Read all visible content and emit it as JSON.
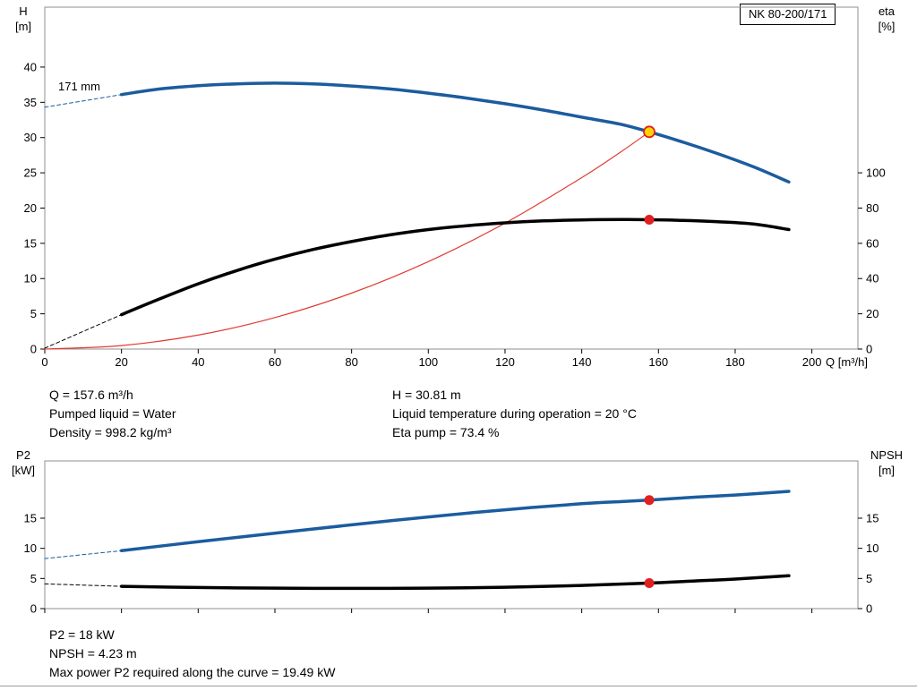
{
  "results": {
    "q": "Q = 157.6 m³/h",
    "pumped_liquid": "Pumped liquid = Water",
    "density": "Density = 998.2 kg/m³",
    "h": "H = 30.81 m",
    "liquid_temp": "Liquid temperature during operation = 20 °C",
    "eta_pump": "Eta pump = 73.4 %",
    "p2": "P2 = 18 kW",
    "npsh": "NPSH = 4.23 m",
    "max_power": "Max power P2 required along the curve = 19.49 kW"
  },
  "chart_data": [
    {
      "type": "line",
      "title": "NK 80-200/171",
      "x_label": "Q [m³/h]",
      "y_left_label": "H",
      "y_left_unit": "[m]",
      "y_right_label": "eta",
      "y_right_unit": "[%]",
      "x_range": [
        0,
        212
      ],
      "y_left_range": [
        0,
        48.5
      ],
      "y_right_range": [
        0,
        194
      ],
      "x_ticks": [
        0,
        20,
        40,
        60,
        80,
        100,
        120,
        140,
        160,
        180,
        200
      ],
      "y_left_ticks": [
        0,
        5,
        10,
        15,
        20,
        25,
        30,
        35,
        40
      ],
      "y_right_ticks": [
        0,
        20,
        40,
        60,
        80,
        100
      ],
      "show_x_labels": true,
      "grid": false,
      "annotations": [
        {
          "text": "171 mm",
          "x": 3.5,
          "y": 36.7
        }
      ],
      "series": [
        {
          "name": "head-curve-extrapolated",
          "axis": "left",
          "color": "#1b5c9e",
          "width": 1,
          "dash": "4,3",
          "points": [
            [
              0,
              34.3
            ],
            [
              20,
              36.1
            ]
          ]
        },
        {
          "name": "eta-curve-extrapolated",
          "axis": "right",
          "color": "#000000",
          "width": 1,
          "dash": "4,3",
          "points": [
            [
              0,
              0.5
            ],
            [
              20,
              19.5
            ]
          ]
        },
        {
          "name": "duty-parabola",
          "axis": "left",
          "color": "#e03c32",
          "width": 1.2,
          "points": [
            [
              0,
              0
            ],
            [
              20,
              0.5
            ],
            [
              40,
              1.98
            ],
            [
              60,
              4.47
            ],
            [
              80,
              7.94
            ],
            [
              100,
              12.4
            ],
            [
              120,
              17.86
            ],
            [
              140,
              24.31
            ],
            [
              150,
              27.9
            ],
            [
              157.6,
              30.81
            ]
          ]
        },
        {
          "name": "head-curve-171mm",
          "axis": "left",
          "color": "#1b5c9e",
          "width": 3.5,
          "points": [
            [
              20,
              36.1
            ],
            [
              30,
              36.9
            ],
            [
              40,
              37.35
            ],
            [
              50,
              37.62
            ],
            [
              60,
              37.72
            ],
            [
              70,
              37.62
            ],
            [
              80,
              37.32
            ],
            [
              90,
              36.9
            ],
            [
              100,
              36.3
            ],
            [
              110,
              35.6
            ],
            [
              120,
              34.8
            ],
            [
              130,
              33.9
            ],
            [
              140,
              32.9
            ],
            [
              150,
              31.9
            ],
            [
              157.6,
              30.81
            ],
            [
              165,
              29.6
            ],
            [
              175,
              27.8
            ],
            [
              185,
              25.8
            ],
            [
              194,
              23.7
            ]
          ]
        },
        {
          "name": "eta-curve",
          "axis": "right",
          "color": "#000000",
          "width": 3.5,
          "points": [
            [
              20,
              19.5
            ],
            [
              30,
              28.5
            ],
            [
              40,
              37
            ],
            [
              50,
              44.5
            ],
            [
              60,
              51
            ],
            [
              70,
              56.5
            ],
            [
              80,
              61
            ],
            [
              90,
              64.8
            ],
            [
              100,
              67.8
            ],
            [
              110,
              70
            ],
            [
              120,
              71.6
            ],
            [
              130,
              72.7
            ],
            [
              140,
              73.3
            ],
            [
              150,
              73.5
            ],
            [
              157.6,
              73.4
            ],
            [
              165,
              73.1
            ],
            [
              175,
              72.3
            ],
            [
              185,
              70.9
            ],
            [
              194,
              67.8
            ]
          ]
        }
      ],
      "markers": [
        {
          "name": "eta-duty-point",
          "x": 157.6,
          "y": 73.4,
          "axis": "right",
          "r": 5.5,
          "fill": "#e02020"
        },
        {
          "name": "head-duty-point",
          "x": 157.6,
          "y": 30.81,
          "axis": "left",
          "r": 6,
          "fill": "#ffd400",
          "stroke": "#e02020",
          "stroke_width": 1.8
        }
      ]
    },
    {
      "type": "line",
      "x_label": "Q [m³/h]",
      "y_left_label": "P2",
      "y_left_unit": "[kW]",
      "y_right_label": "NPSH",
      "y_right_unit": "[m]",
      "x_range": [
        0,
        212
      ],
      "y_left_range": [
        0,
        24.5
      ],
      "y_right_range": [
        0,
        24.5
      ],
      "x_ticks": [
        0,
        20,
        40,
        60,
        80,
        100,
        120,
        140,
        160,
        180,
        200
      ],
      "y_left_ticks": [
        0,
        5,
        10,
        15
      ],
      "y_right_ticks": [
        0,
        5,
        10,
        15
      ],
      "show_x_labels": false,
      "grid": false,
      "annotations": [],
      "series": [
        {
          "name": "p2-curve-extrapolated",
          "axis": "left",
          "color": "#1b5c9e",
          "width": 1,
          "dash": "4,3",
          "points": [
            [
              0,
              8.3
            ],
            [
              20,
              9.6
            ]
          ]
        },
        {
          "name": "npsh-curve-extrapolated",
          "axis": "right",
          "color": "#000000",
          "width": 1,
          "dash": "4,3",
          "points": [
            [
              0,
              4.1
            ],
            [
              20,
              3.7
            ]
          ]
        },
        {
          "name": "p2-curve",
          "axis": "left",
          "color": "#1b5c9e",
          "width": 3.5,
          "points": [
            [
              20,
              9.6
            ],
            [
              40,
              11.1
            ],
            [
              60,
              12.5
            ],
            [
              80,
              13.9
            ],
            [
              100,
              15.2
            ],
            [
              120,
              16.4
            ],
            [
              140,
              17.4
            ],
            [
              150,
              17.75
            ],
            [
              157.6,
              18.0
            ],
            [
              170,
              18.5
            ],
            [
              180,
              18.85
            ],
            [
              194,
              19.45
            ]
          ]
        },
        {
          "name": "npsh-curve",
          "axis": "right",
          "color": "#000000",
          "width": 3.5,
          "points": [
            [
              20,
              3.7
            ],
            [
              40,
              3.5
            ],
            [
              60,
              3.4
            ],
            [
              80,
              3.35
            ],
            [
              100,
              3.4
            ],
            [
              120,
              3.55
            ],
            [
              140,
              3.85
            ],
            [
              157.6,
              4.23
            ],
            [
              170,
              4.6
            ],
            [
              180,
              4.9
            ],
            [
              194,
              5.45
            ]
          ]
        }
      ],
      "markers": [
        {
          "name": "p2-duty-point",
          "x": 157.6,
          "y": 18.0,
          "axis": "left",
          "r": 5.5,
          "fill": "#e02020"
        },
        {
          "name": "npsh-duty-point",
          "x": 157.6,
          "y": 4.23,
          "axis": "right",
          "r": 5.5,
          "fill": "#e02020"
        }
      ]
    }
  ]
}
